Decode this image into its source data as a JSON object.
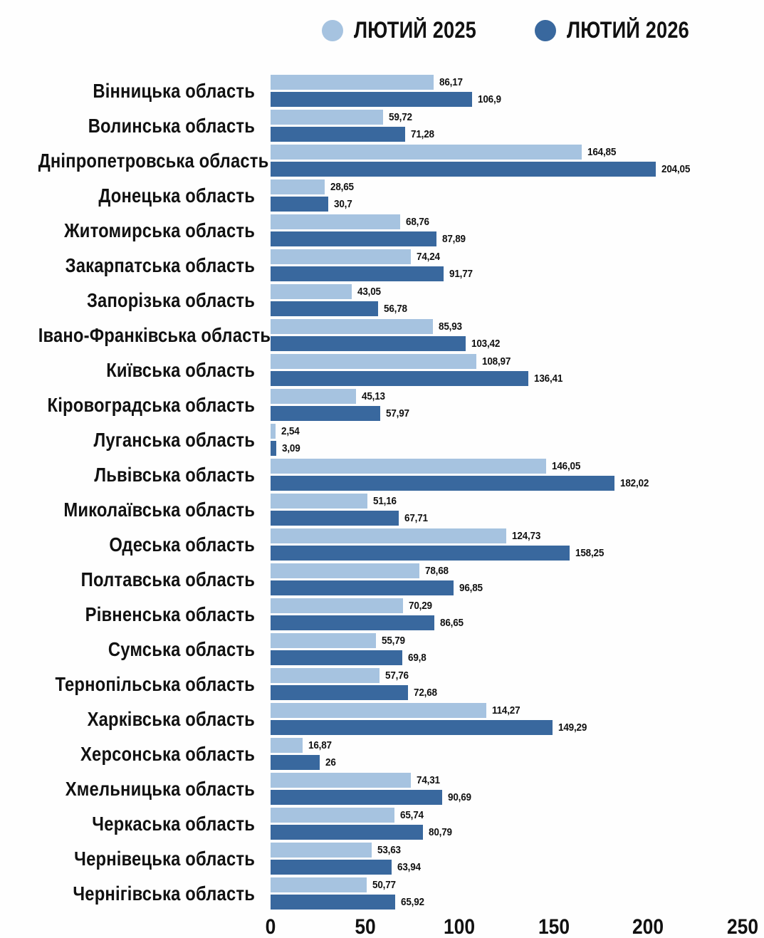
{
  "legend": {
    "items": [
      {
        "label": "ЛЮТИЙ 2025",
        "color": "#a6c3e0"
      },
      {
        "label": "ЛЮТИЙ 2026",
        "color": "#39689e"
      }
    ]
  },
  "chart_data": {
    "type": "bar",
    "orientation": "horizontal",
    "title": "",
    "xlabel": "",
    "ylabel": "",
    "xlim": [
      0,
      250
    ],
    "grid": false,
    "legend_position": "top",
    "xticks": [
      {
        "value": 0,
        "label": "0"
      },
      {
        "value": 50,
        "label": "50"
      },
      {
        "value": 100,
        "label": "100"
      },
      {
        "value": 150,
        "label": "150"
      },
      {
        "value": 200,
        "label": "200"
      },
      {
        "value": 250,
        "label": "250"
      }
    ],
    "categories": [
      "Вінницька область",
      "Волинська область",
      "Дніпропетровська область",
      "Донецька область",
      "Житомирська область",
      "Закарпатська область",
      "Запорізька область",
      "Івано-Франківська область",
      "Київська область",
      "Кіровоградська область",
      "Луганська область",
      "Львівська область",
      "Миколаївська область",
      "Одеська область",
      "Полтавська область",
      "Рівненська область",
      "Сумська область",
      "Тернопільська область",
      "Харківська область",
      "Херсонська область",
      "Хмельницька область",
      "Черкаська область",
      "Чернівецька область",
      "Чернігівська область"
    ],
    "series": [
      {
        "name": "ЛЮТИЙ 2025",
        "color": "#a6c3e0",
        "values": [
          86.17,
          59.72,
          164.85,
          28.65,
          68.76,
          74.24,
          43.05,
          85.93,
          108.97,
          45.13,
          2.54,
          146.05,
          51.16,
          124.73,
          78.68,
          70.29,
          55.79,
          57.76,
          114.27,
          16.87,
          74.31,
          65.74,
          53.63,
          50.77
        ],
        "labels": [
          "86,17",
          "59,72",
          "164,85",
          "28,65",
          "68,76",
          "74,24",
          "43,05",
          "85,93",
          "108,97",
          "45,13",
          "2,54",
          "146,05",
          "51,16",
          "124,73",
          "78,68",
          "70,29",
          "55,79",
          "57,76",
          "114,27",
          "16,87",
          "74,31",
          "65,74",
          "53,63",
          "50,77"
        ]
      },
      {
        "name": "ЛЮТИЙ 2026",
        "color": "#39689e",
        "values": [
          106.9,
          71.28,
          204.05,
          30.7,
          87.89,
          91.77,
          56.78,
          103.42,
          136.41,
          57.97,
          3.09,
          182.02,
          67.71,
          158.25,
          96.85,
          86.65,
          69.8,
          72.68,
          149.29,
          26,
          90.69,
          80.79,
          63.94,
          65.92
        ],
        "labels": [
          "106,9",
          "71,28",
          "204,05",
          "30,7",
          "87,89",
          "91,77",
          "56,78",
          "103,42",
          "136,41",
          "57,97",
          "3,09",
          "182,02",
          "67,71",
          "158,25",
          "96,85",
          "86,65",
          "69,8",
          "72,68",
          "149,29",
          "26",
          "90,69",
          "80,79",
          "63,94",
          "65,92"
        ]
      }
    ]
  }
}
